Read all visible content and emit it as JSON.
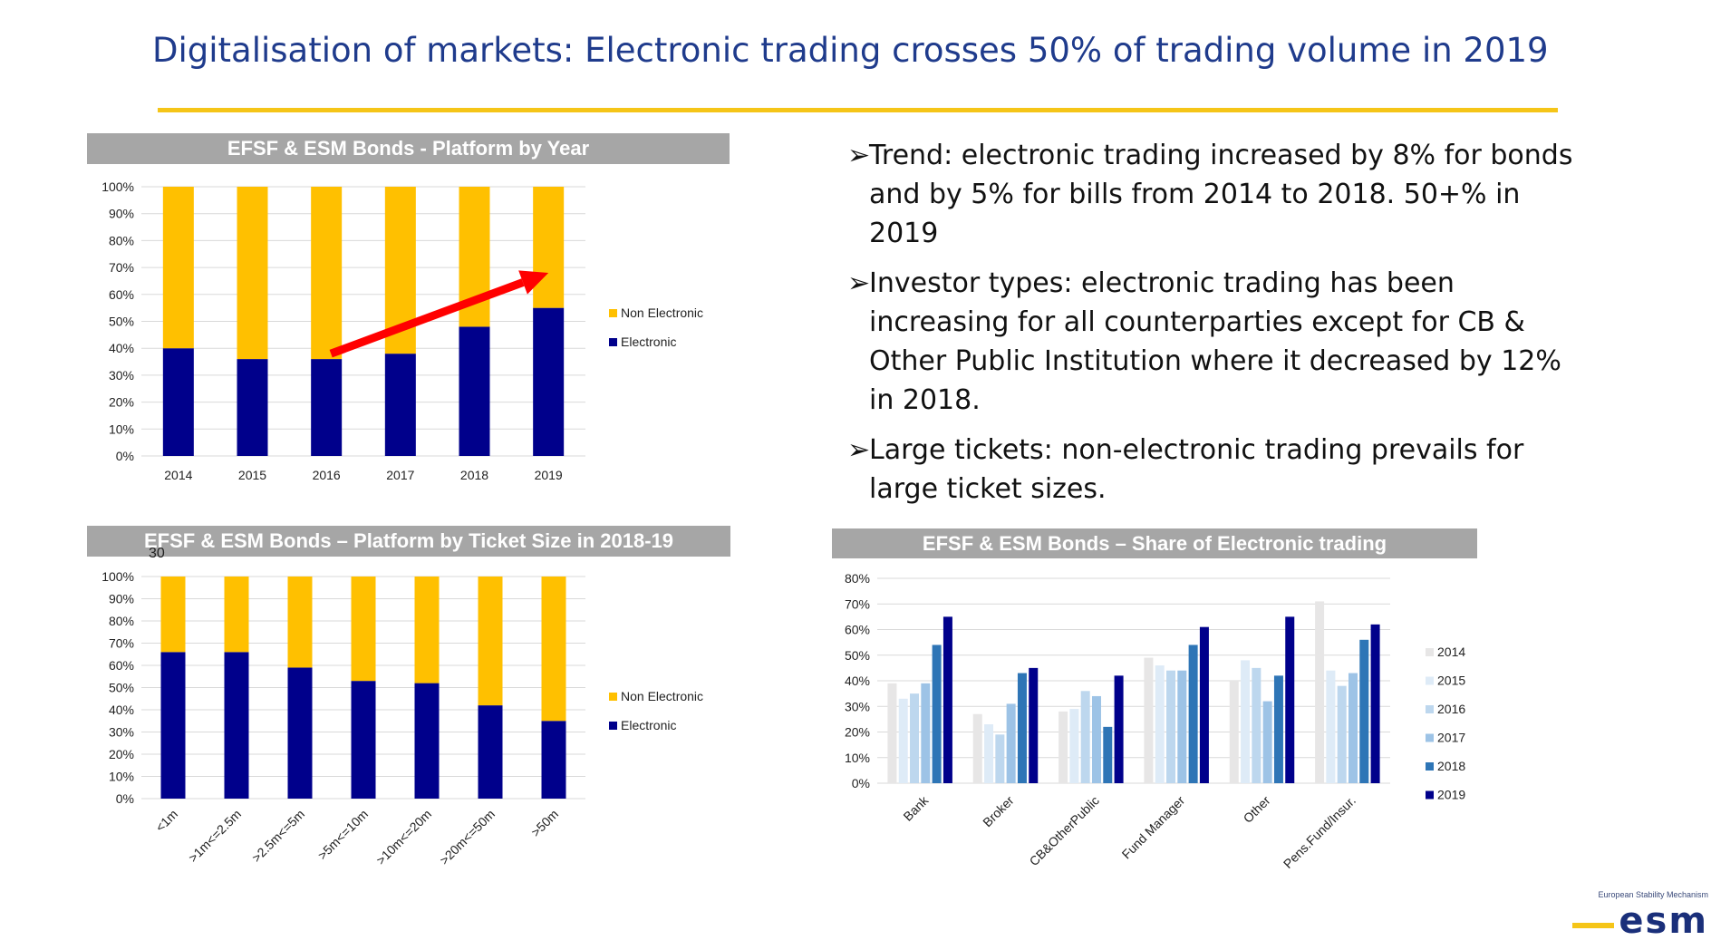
{
  "slide": {
    "title": "Digitalisation of markets: Electronic trading crosses 50% of trading volume in 2019"
  },
  "panels": {
    "year_header": "EFSF & ESM Bonds - Platform by Year",
    "ticket_header": "EFSF & ESM Bonds – Platform by Ticket Size in 2018-19",
    "share_header": "EFSF & ESM Bonds – Share of Electronic trading",
    "stray_label": "30"
  },
  "bullets": [
    "Trend: electronic trading increased by 8% for bonds and by 5% for bills from 2014 to 2018. 50+% in 2019",
    "Investor types: electronic trading has been increasing for all counterparties except for CB & Other Public Institution where it decreased by 12% in 2018.",
    "Large tickets: non-electronic trading prevails for large ticket sizes."
  ],
  "bullet_marker": "➢",
  "logo": {
    "caption": "European Stability Mechanism",
    "mark": "esm"
  },
  "colors": {
    "title": "#1f3b8c",
    "accent": "#f5c518",
    "electronic": "#00008b",
    "non_electronic": "#ffc000",
    "arrow": "#ff0000",
    "header": "#a6a6a6"
  },
  "chart_data": [
    {
      "type": "bar",
      "stacked": true,
      "categories": [
        "2014",
        "2015",
        "2016",
        "2017",
        "2018",
        "2019"
      ],
      "series": [
        {
          "name": "Electronic",
          "values": [
            40,
            36,
            36,
            38,
            48,
            55
          ],
          "color": "#00008b"
        },
        {
          "name": "Non Electronic",
          "values": [
            60,
            64,
            64,
            62,
            52,
            45
          ],
          "color": "#ffc000"
        }
      ],
      "yticks": [
        "0%",
        "10%",
        "20%",
        "30%",
        "40%",
        "50%",
        "60%",
        "70%",
        "80%",
        "90%",
        "100%"
      ],
      "ylim": [
        0,
        100
      ],
      "legend": "right",
      "grid": true,
      "annotation": "red trend arrow from 2016 to 2019"
    },
    {
      "type": "bar",
      "stacked": true,
      "categories": [
        "<1m",
        ">1m<=2.5m",
        ">2.5m<=5m",
        ">5m<=10m",
        ">10m<=20m",
        ">20m<=50m",
        ">50m"
      ],
      "series": [
        {
          "name": "Electronic",
          "values": [
            66,
            66,
            59,
            53,
            52,
            42,
            35
          ],
          "color": "#00008b"
        },
        {
          "name": "Non Electronic",
          "values": [
            34,
            34,
            41,
            47,
            48,
            58,
            65
          ],
          "color": "#ffc000"
        }
      ],
      "yticks": [
        "0%",
        "10%",
        "20%",
        "30%",
        "40%",
        "50%",
        "60%",
        "70%",
        "80%",
        "90%",
        "100%"
      ],
      "ylim": [
        0,
        100
      ],
      "legend": "right",
      "grid": true
    },
    {
      "type": "bar",
      "stacked": false,
      "categories": [
        "Bank",
        "Broker",
        "CB&OtherPublic",
        "Fund Manager",
        "Other",
        "Pens.Fund/Insur."
      ],
      "series": [
        {
          "name": "2014",
          "values": [
            39,
            27,
            28,
            49,
            40,
            71
          ],
          "color": "#e7e6e6"
        },
        {
          "name": "2015",
          "values": [
            33,
            23,
            29,
            46,
            48,
            44
          ],
          "color": "#deebf7"
        },
        {
          "name": "2016",
          "values": [
            35,
            19,
            36,
            44,
            45,
            38
          ],
          "color": "#bdd7ee"
        },
        {
          "name": "2017",
          "values": [
            39,
            31,
            34,
            44,
            32,
            43
          ],
          "color": "#9dc3e6"
        },
        {
          "name": "2018",
          "values": [
            54,
            43,
            22,
            54,
            42,
            56
          ],
          "color": "#2e75b6"
        },
        {
          "name": "2019",
          "values": [
            65,
            45,
            42,
            61,
            65,
            62
          ],
          "color": "#00008b"
        }
      ],
      "yticks": [
        "0%",
        "10%",
        "20%",
        "30%",
        "40%",
        "50%",
        "60%",
        "70%",
        "80%"
      ],
      "ylim": [
        0,
        80
      ],
      "legend": "right",
      "grid": true
    }
  ]
}
